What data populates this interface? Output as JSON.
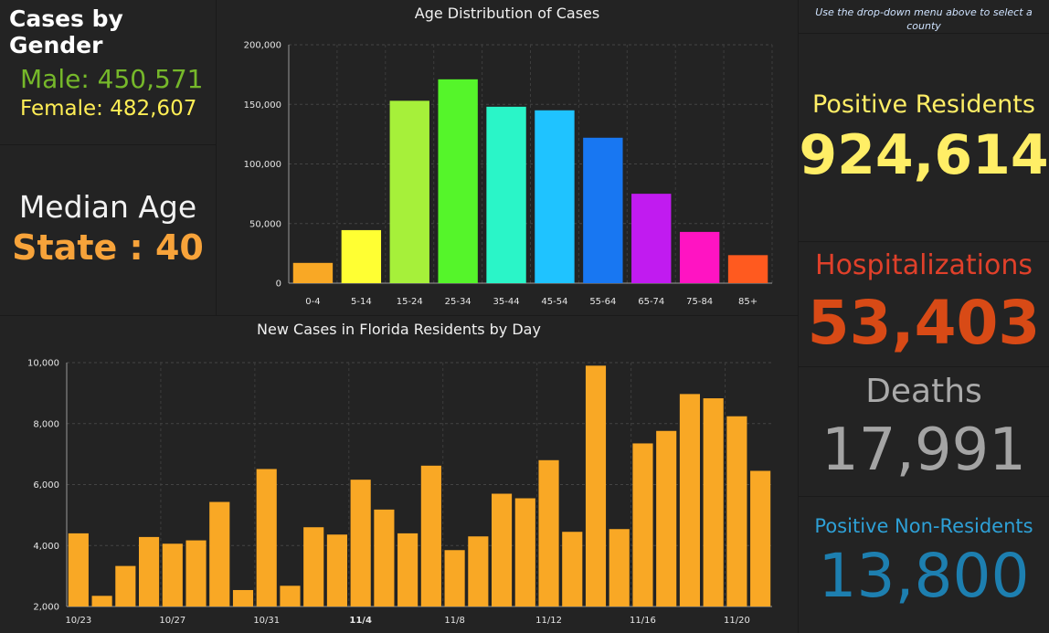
{
  "gender": {
    "title": "Cases by Gender",
    "male": "Male: 450,571",
    "female": "Female: 482,607"
  },
  "median": {
    "title": "Median Age",
    "value": "State : 40"
  },
  "note": "Use the drop-down menu above to select a county",
  "positive_residents": {
    "label": "Positive Residents",
    "value": "924,614"
  },
  "hospitalizations": {
    "label": "Hospitalizations",
    "value": "53,403"
  },
  "deaths": {
    "label": "Deaths",
    "value": "17,991"
  },
  "non_residents": {
    "label": "Positive Non-Residents",
    "value": "13,800"
  },
  "colors": {
    "male": "#76b82a",
    "female": "#ffee55",
    "median": "#f7a33a",
    "daily_bar": "#f9a825"
  },
  "chart_data": [
    {
      "type": "bar",
      "title": "Age Distribution of Cases",
      "categories": [
        "0-4",
        "5-14",
        "15-24",
        "25-34",
        "35-44",
        "45-54",
        "55-64",
        "65-74",
        "75-84",
        "85+"
      ],
      "values": [
        17000,
        44500,
        153000,
        171000,
        148000,
        145000,
        122000,
        75000,
        43000,
        23500
      ],
      "colors": [
        "#f9a825",
        "#ffff33",
        "#a6f03a",
        "#55f52a",
        "#2af5c8",
        "#1fc3ff",
        "#1877f2",
        "#c11bf0",
        "#ff14c2",
        "#ff5a1f"
      ],
      "yticks": [
        0,
        50000,
        100000,
        150000,
        200000
      ],
      "ytick_labels": [
        "0",
        "50,000",
        "100,000",
        "150,000",
        "200,000"
      ],
      "ylim": [
        0,
        200000
      ],
      "grid": true
    },
    {
      "type": "bar",
      "title": "New Cases in Florida Residents by Day",
      "x": [
        "10/23",
        "10/24",
        "10/25",
        "10/26",
        "10/27",
        "10/28",
        "10/29",
        "10/30",
        "10/31",
        "11/1",
        "11/2",
        "11/3",
        "11/4",
        "11/5",
        "11/6",
        "11/7",
        "11/8",
        "11/9",
        "11/10",
        "11/11",
        "11/12",
        "11/13",
        "11/14",
        "11/15",
        "11/16",
        "11/17",
        "11/18",
        "11/19",
        "11/20",
        "11/21"
      ],
      "values": [
        4400,
        2350,
        3330,
        4280,
        4060,
        4170,
        5430,
        2540,
        6510,
        2680,
        4600,
        4360,
        6160,
        5180,
        4400,
        6620,
        3850,
        4300,
        5700,
        5550,
        6800,
        4450,
        9900,
        4540,
        7350,
        7760,
        8970,
        8830,
        8240,
        6450
      ],
      "xtick_labels": [
        "10/23",
        "10/27",
        "10/31",
        "11/4",
        "11/8",
        "11/12",
        "11/16",
        "11/20"
      ],
      "yticks": [
        2000,
        4000,
        6000,
        8000,
        10000
      ],
      "ytick_labels": [
        "2,000",
        "4,000",
        "6,000",
        "8,000",
        "10,000"
      ],
      "ylim": [
        2000,
        10000
      ],
      "grid": true
    }
  ]
}
